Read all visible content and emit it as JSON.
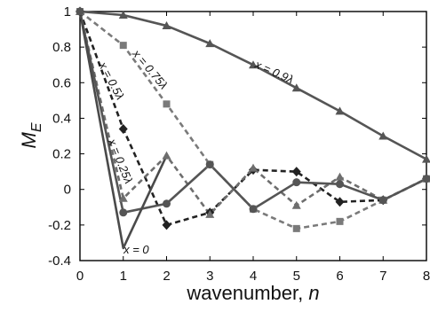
{
  "chart_data": {
    "type": "line",
    "xlabel_text": "wavenumber, ",
    "xlabel_var": "n",
    "ylabel_main": "M",
    "ylabel_sub": "E",
    "xlim": [
      0,
      8
    ],
    "ylim": [
      -0.4,
      1
    ],
    "xticks": [
      "0",
      "1",
      "2",
      "3",
      "4",
      "5",
      "6",
      "7",
      "8"
    ],
    "yticks": [
      "1",
      "0.8",
      "0.6",
      "0.4",
      "0.2",
      "0",
      "-0.2",
      "-0.4"
    ],
    "grid": false,
    "x": [
      0,
      1,
      2,
      3,
      4,
      5,
      6,
      7,
      8
    ],
    "series": [
      {
        "name": "x = 0.9λ",
        "color": "#555555",
        "dash": "solid",
        "marker": "triangle",
        "values": [
          1.0,
          0.98,
          0.92,
          0.82,
          0.7,
          0.57,
          0.44,
          0.3,
          0.17
        ]
      },
      {
        "name": "x = 0.75λ",
        "color": "#7a7a7a",
        "dash": "dashed",
        "marker": "square",
        "values": [
          1.0,
          0.81,
          0.48,
          0.14,
          -0.11,
          -0.22,
          -0.18,
          -0.06,
          0.06
        ]
      },
      {
        "name": "x = 0.5λ",
        "color": "#222222",
        "dash": "dashed",
        "marker": "diamond",
        "values": [
          1.0,
          0.34,
          -0.2,
          -0.13,
          0.11,
          0.1,
          -0.07,
          -0.06,
          0.06
        ]
      },
      {
        "name": "x = 0.25λ",
        "color": "#6e6e6e",
        "dash": "dashed",
        "marker": "triangle",
        "values": [
          1.0,
          -0.05,
          0.19,
          -0.14,
          0.12,
          -0.09,
          0.07,
          -0.06,
          0.06
        ]
      },
      {
        "name": "x = 0",
        "color": "#555555",
        "dash": "solid",
        "marker": "circle",
        "values": [
          1.0,
          -0.13,
          -0.08,
          0.14,
          -0.11,
          0.04,
          0.03,
          -0.06,
          0.06
        ]
      },
      {
        "name": "",
        "color": "#4a4a4a",
        "dash": "solid",
        "marker": "none",
        "values": [
          1.0,
          -0.33,
          0.19,
          null,
          null,
          null,
          null,
          null,
          null
        ]
      }
    ],
    "annotations": [
      {
        "text": "x = 0.9λ",
        "x": 4.45,
        "y": 0.64,
        "rotate": 24
      },
      {
        "text": "x = 0.75λ",
        "x": 1.55,
        "y": 0.66,
        "rotate": 50
      },
      {
        "text": "x = 0.5λ",
        "x": 0.65,
        "y": 0.6,
        "rotate": 62
      },
      {
        "text": "x = 0.25λ",
        "x": 0.85,
        "y": 0.15,
        "rotate": 68
      },
      {
        "text": "x = 0",
        "x": 1.3,
        "y": -0.36,
        "rotate": 0
      }
    ]
  }
}
